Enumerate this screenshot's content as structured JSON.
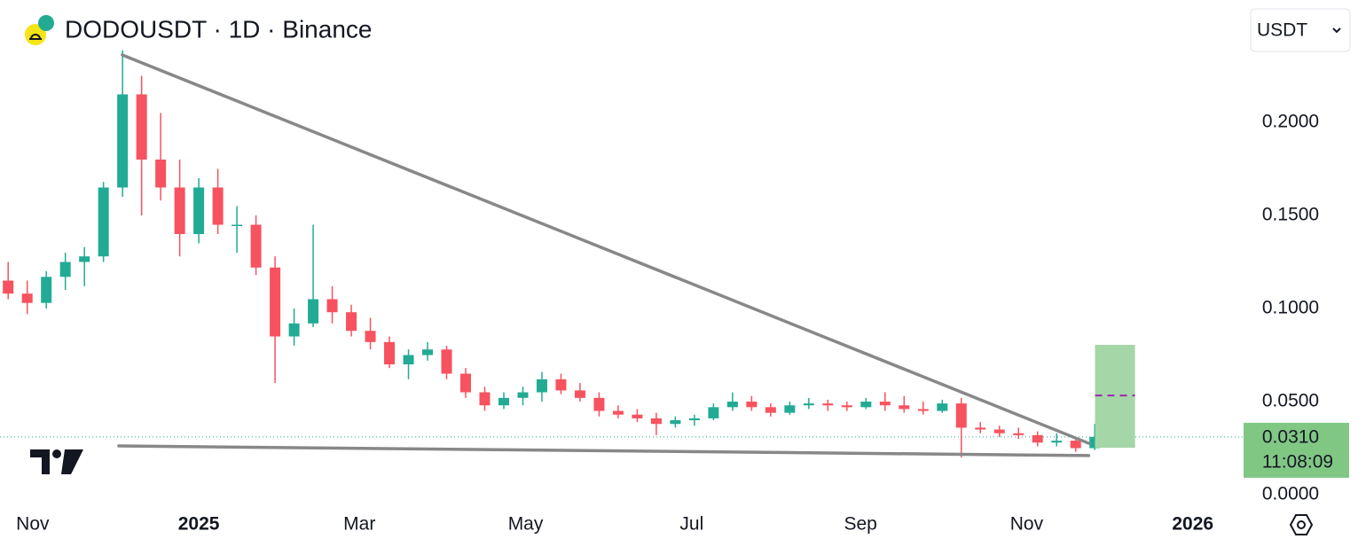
{
  "chart_data": {
    "type": "candlestick",
    "title": "DODOUSDT · 1D · Binance",
    "currency": "USDT",
    "up_color": "#22ab94",
    "down_color": "#f7525f",
    "xlim": [
      -12,
      444
    ],
    "ylim": [
      -0.0057,
      0.2657
    ],
    "xticks": [
      {
        "value": 0,
        "label": "Nov"
      },
      {
        "value": 61,
        "label": "2025"
      },
      {
        "value": 120,
        "label": "Mar"
      },
      {
        "value": 181,
        "label": "May"
      },
      {
        "value": 242,
        "label": "Jul"
      },
      {
        "value": 304,
        "label": "Sep"
      },
      {
        "value": 365,
        "label": "Nov"
      },
      {
        "value": 426,
        "label": "2026"
      }
    ],
    "yticks": [
      {
        "value": 0.2,
        "label": "0.2000"
      },
      {
        "value": 0.15,
        "label": "0.1500"
      },
      {
        "value": 0.1,
        "label": "0.1000"
      },
      {
        "value": 0.05,
        "label": "0.0500"
      },
      {
        "value": 0,
        "label": "0.0000"
      }
    ],
    "x": [
      -9,
      -2,
      5,
      12,
      19,
      26,
      33,
      40,
      47,
      54,
      61,
      68,
      75,
      82,
      89,
      96,
      103,
      110,
      117,
      124,
      131,
      138,
      145,
      152,
      159,
      166,
      173,
      180,
      187,
      194,
      201,
      208,
      215,
      222,
      229,
      236,
      243,
      250,
      257,
      264,
      271,
      278,
      285,
      292,
      299,
      306,
      313,
      320,
      327,
      334,
      341,
      348,
      355,
      362,
      369,
      376,
      383,
      390
    ],
    "open": [
      0.115,
      0.108,
      0.103,
      0.117,
      0.125,
      0.128,
      0.165,
      0.215,
      0.18,
      0.165,
      0.14,
      0.165,
      0.145,
      0.145,
      0.122,
      0.085,
      0.092,
      0.105,
      0.098,
      0.088,
      0.082,
      0.07,
      0.075,
      0.078,
      0.065,
      0.055,
      0.048,
      0.052,
      0.055,
      0.062,
      0.056,
      0.052,
      0.045,
      0.043,
      0.041,
      0.038,
      0.04,
      0.041,
      0.047,
      0.05,
      0.047,
      0.044,
      0.048,
      0.049,
      0.048,
      0.047,
      0.05,
      0.048,
      0.046,
      0.045,
      0.049,
      0.036,
      0.035,
      0.033,
      0.032,
      0.028,
      0.029,
      0.025
    ],
    "high": [
      0.125,
      0.115,
      0.12,
      0.13,
      0.133,
      0.168,
      0.2387,
      0.225,
      0.205,
      0.18,
      0.17,
      0.175,
      0.155,
      0.15,
      0.128,
      0.1,
      0.145,
      0.112,
      0.102,
      0.095,
      0.085,
      0.078,
      0.082,
      0.08,
      0.068,
      0.058,
      0.055,
      0.058,
      0.066,
      0.065,
      0.06,
      0.055,
      0.048,
      0.046,
      0.044,
      0.042,
      0.043,
      0.049,
      0.055,
      0.053,
      0.049,
      0.05,
      0.052,
      0.051,
      0.05,
      0.052,
      0.055,
      0.053,
      0.05,
      0.051,
      0.052,
      0.039,
      0.037,
      0.036,
      0.034,
      0.033,
      0.03,
      0.038
    ],
    "low": [
      0.105,
      0.097,
      0.1,
      0.11,
      0.112,
      0.125,
      0.16,
      0.15,
      0.158,
      0.128,
      0.135,
      0.14,
      0.13,
      0.118,
      0.06,
      0.08,
      0.09,
      0.092,
      0.085,
      0.078,
      0.068,
      0.062,
      0.072,
      0.062,
      0.052,
      0.045,
      0.046,
      0.048,
      0.05,
      0.054,
      0.05,
      0.042,
      0.041,
      0.039,
      0.032,
      0.036,
      0.037,
      0.04,
      0.045,
      0.045,
      0.042,
      0.043,
      0.046,
      0.045,
      0.045,
      0.046,
      0.045,
      0.044,
      0.043,
      0.044,
      0.02,
      0.033,
      0.031,
      0.03,
      0.026,
      0.026,
      0.023,
      0.024
    ],
    "close": [
      0.108,
      0.103,
      0.117,
      0.125,
      0.128,
      0.165,
      0.215,
      0.18,
      0.165,
      0.14,
      0.165,
      0.145,
      0.145,
      0.122,
      0.085,
      0.092,
      0.105,
      0.098,
      0.088,
      0.082,
      0.07,
      0.075,
      0.078,
      0.065,
      0.055,
      0.048,
      0.052,
      0.055,
      0.062,
      0.056,
      0.052,
      0.045,
      0.043,
      0.041,
      0.038,
      0.04,
      0.041,
      0.047,
      0.05,
      0.047,
      0.044,
      0.048,
      0.049,
      0.048,
      0.047,
      0.05,
      0.048,
      0.046,
      0.045,
      0.049,
      0.036,
      0.035,
      0.033,
      0.032,
      0.028,
      0.029,
      0.025,
      0.031
    ],
    "last_price": {
      "value": 0.031,
      "label": "0.0310"
    },
    "countdown": "11:08:09",
    "trendlines": [
      {
        "x": [
          32.9,
          387.8
        ],
        "y": [
          0.2362,
          0.0276
        ]
      },
      {
        "x": [
          31.6,
          387.8
        ],
        "y": [
          0.0262,
          0.021
        ]
      }
    ],
    "position": {
      "x": [
        390.1,
        404.8
      ],
      "top": 0.0805,
      "bottom": 0.0252,
      "target": 0.0533
    }
  }
}
